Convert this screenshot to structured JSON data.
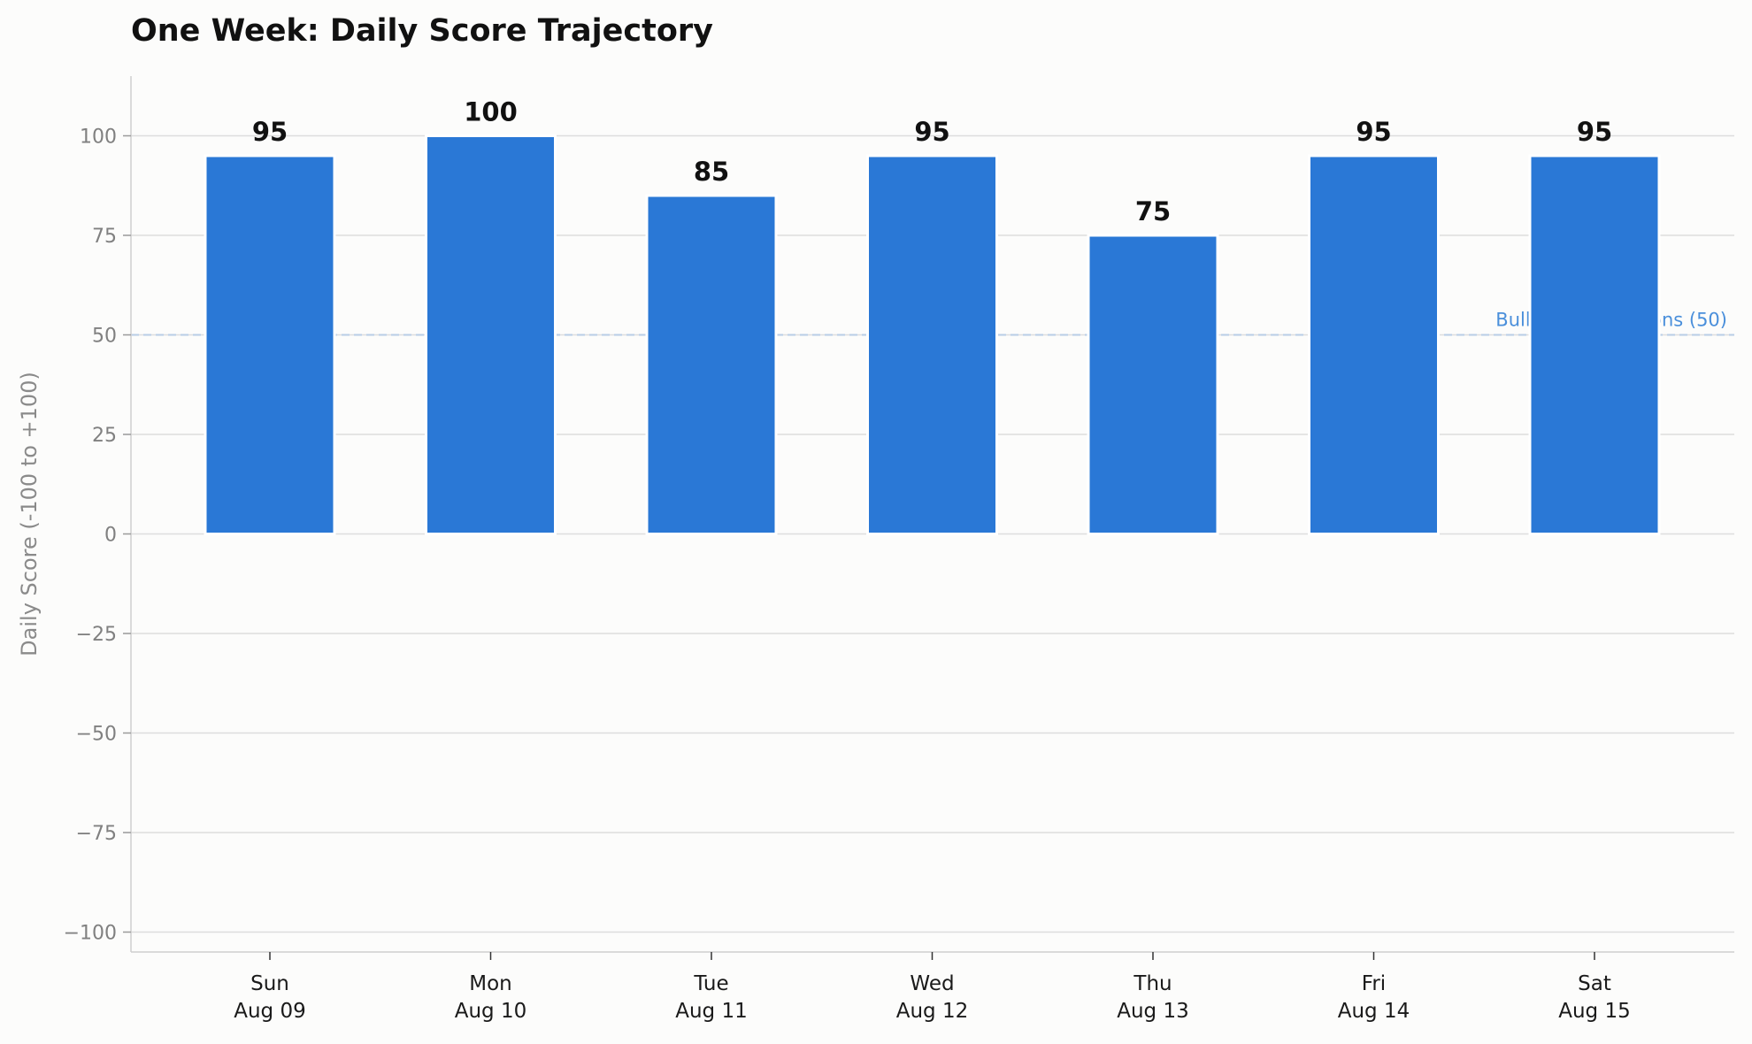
{
  "chart_data": {
    "type": "bar",
    "title": "One Week: Daily Score Trajectory",
    "xlabel": "",
    "ylabel": "Daily Score (-100 to +100)",
    "ylim": [
      -105,
      115
    ],
    "yticks": [
      -100,
      -75,
      -50,
      -25,
      0,
      25,
      50,
      75,
      100
    ],
    "ytick_labels": [
      "−100",
      "−75",
      "−50",
      "−25",
      "0",
      "25",
      "50",
      "75",
      "100"
    ],
    "categories": [
      {
        "day": "Sun",
        "date": "Aug 09"
      },
      {
        "day": "Mon",
        "date": "Aug 10"
      },
      {
        "day": "Tue",
        "date": "Aug 11"
      },
      {
        "day": "Wed",
        "date": "Aug 12"
      },
      {
        "day": "Thu",
        "date": "Aug 13"
      },
      {
        "day": "Fri",
        "date": "Aug 14"
      },
      {
        "day": "Sat",
        "date": "Aug 15"
      }
    ],
    "values": [
      95,
      100,
      85,
      95,
      75,
      95,
      95
    ],
    "reference_line": {
      "value": 50,
      "label": "Bullish Expectations (50)"
    },
    "grid": true,
    "colors": {
      "bar": "#2a78d6",
      "grid": "#dddddd",
      "reference": "#b8cde6",
      "reference_label": "#4a8fdb"
    }
  }
}
